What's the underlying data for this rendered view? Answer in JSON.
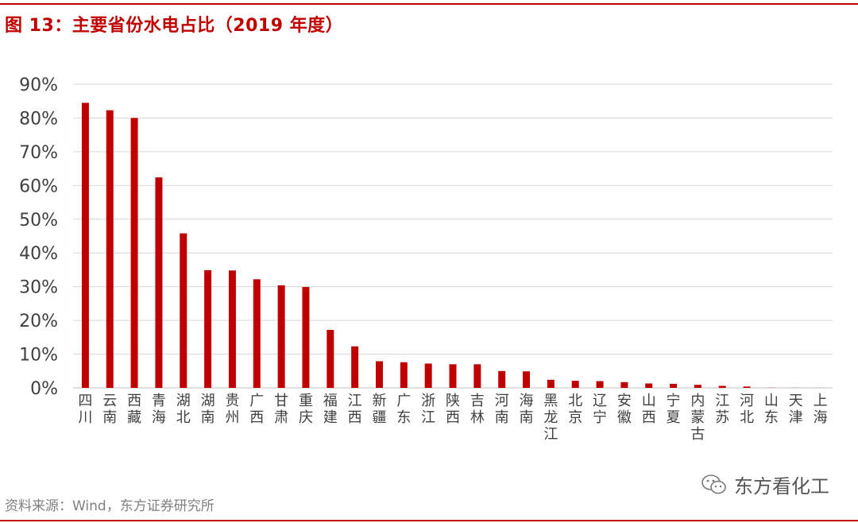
{
  "header": {
    "title": "图 13：主要省份水电占比（2019 年度）"
  },
  "footer": {
    "source": "资料来源：Wind，东方证券研究所",
    "watermark": "东方看化工",
    "watermark_icon": "wechat-icon"
  },
  "colors": {
    "accent": "#c00000",
    "bar": "#c00000",
    "grid": "#d9d9d9",
    "text": "#404040"
  },
  "chart_data": {
    "type": "bar",
    "title": "",
    "xlabel": "",
    "ylabel": "",
    "ylim": [
      0,
      90
    ],
    "yticks": [
      "0%",
      "10%",
      "20%",
      "30%",
      "40%",
      "50%",
      "60%",
      "70%",
      "80%",
      "90%"
    ],
    "grid": true,
    "legend": "none",
    "categories": [
      "四川",
      "云南",
      "西藏",
      "青海",
      "湖北",
      "湖南",
      "贵州",
      "广西",
      "甘肃",
      "重庆",
      "福建",
      "江西",
      "新疆",
      "广东",
      "浙江",
      "陕西",
      "吉林",
      "河南",
      "海南",
      "黑龙江",
      "北京",
      "辽宁",
      "安徽",
      "山西",
      "宁夏",
      "内蒙古",
      "江苏",
      "河北",
      "山东",
      "天津",
      "上海"
    ],
    "values": [
      84.5,
      82.3,
      80.0,
      62.4,
      45.8,
      34.9,
      34.8,
      32.2,
      30.4,
      29.9,
      17.2,
      12.3,
      7.9,
      7.6,
      7.2,
      7.0,
      7.0,
      5.0,
      4.9,
      2.4,
      2.1,
      2.0,
      1.7,
      1.3,
      1.2,
      0.9,
      0.6,
      0.4,
      0.05,
      0.03,
      0.01
    ]
  }
}
